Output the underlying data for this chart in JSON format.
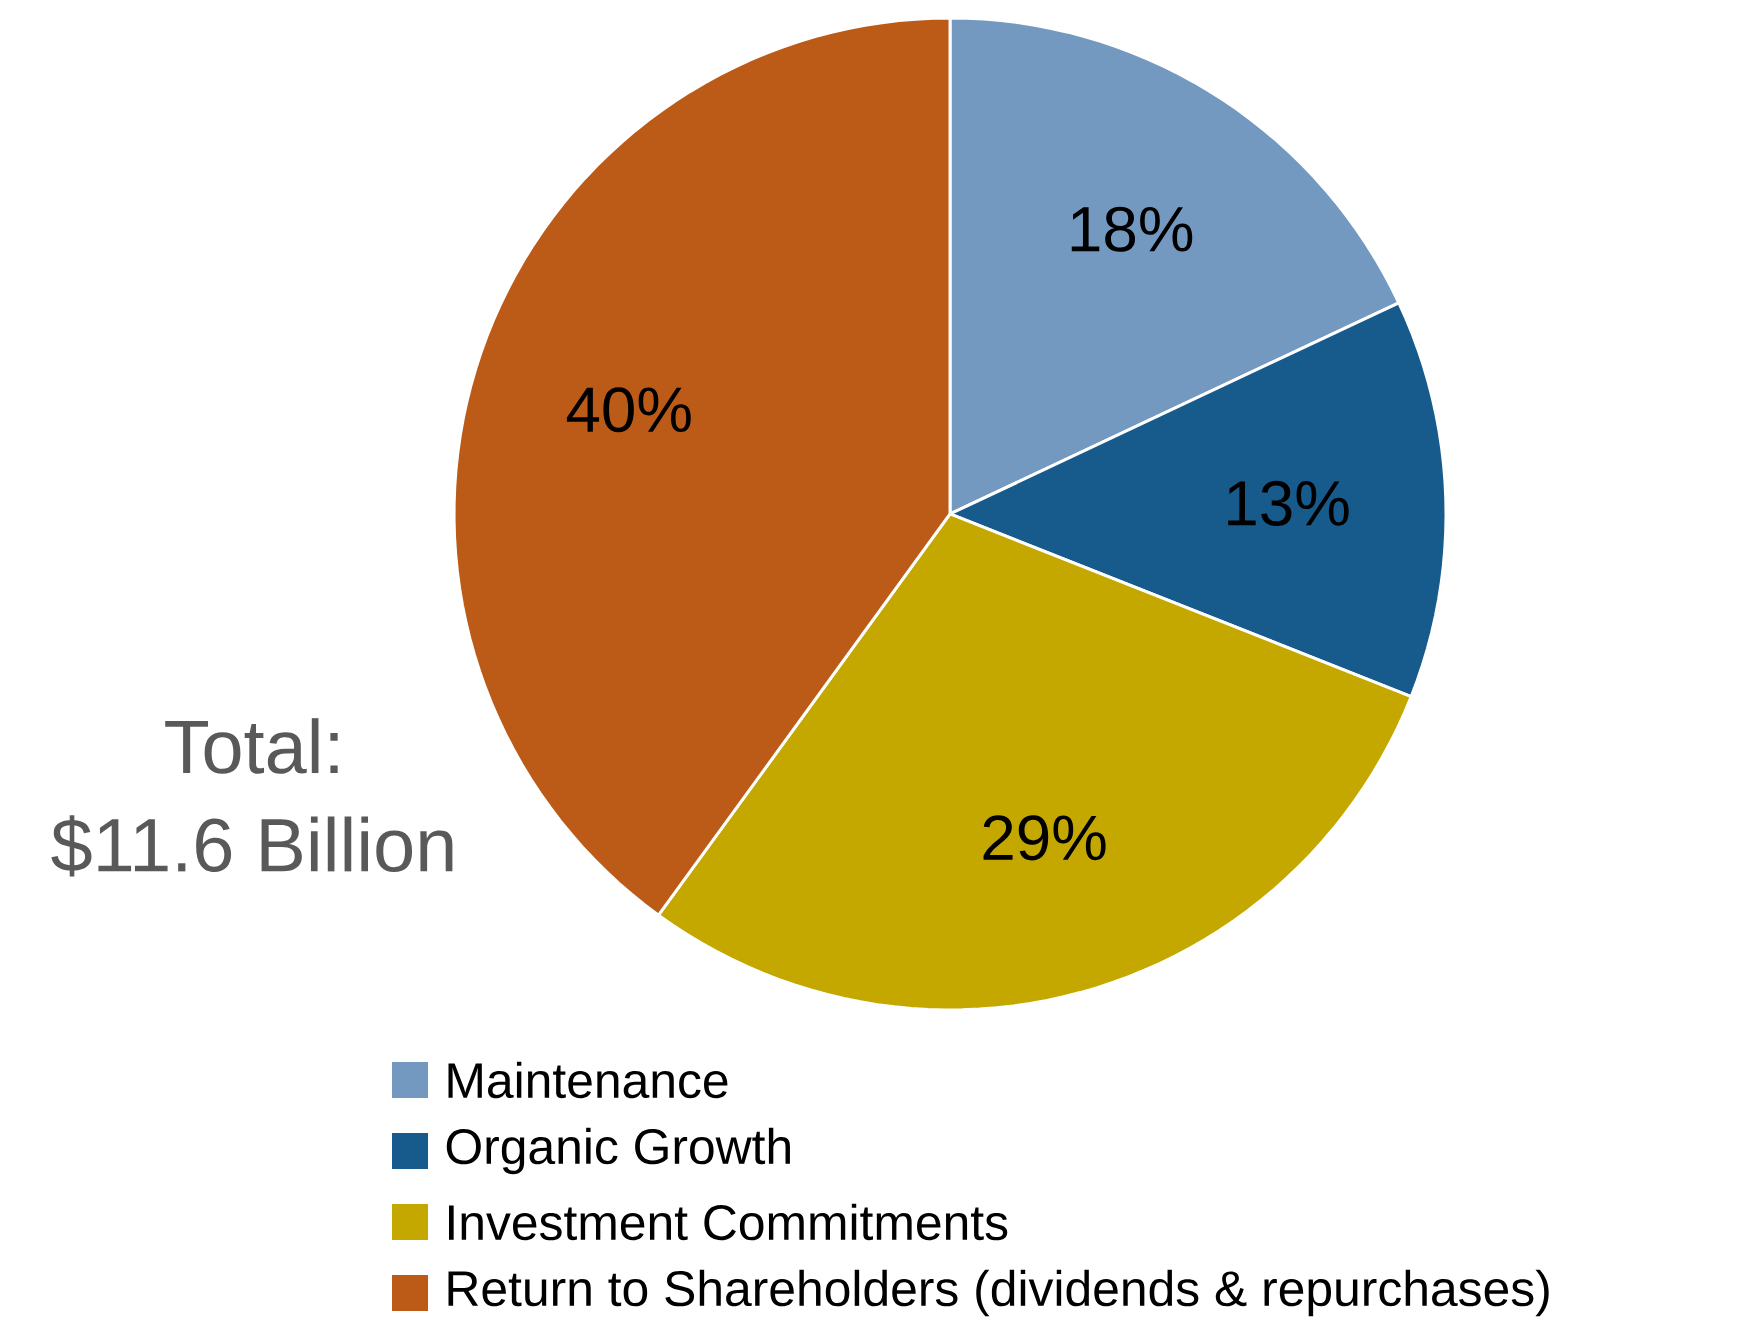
{
  "chart_data": {
    "type": "pie",
    "categories": [
      "Maintenance",
      "Organic Growth",
      "Investment Commitments",
      "Return to Shareholders (dividends & repurchases)"
    ],
    "values": [
      18,
      13,
      29,
      40
    ],
    "value_labels": [
      "18%",
      "13%",
      "29%",
      "40%"
    ],
    "colors": [
      "#7399c0",
      "#175a8c",
      "#c4a800",
      "#bc5a18"
    ],
    "annotations": [
      "Total:",
      "$11.6 Billion"
    ],
    "legend": "bottom"
  }
}
